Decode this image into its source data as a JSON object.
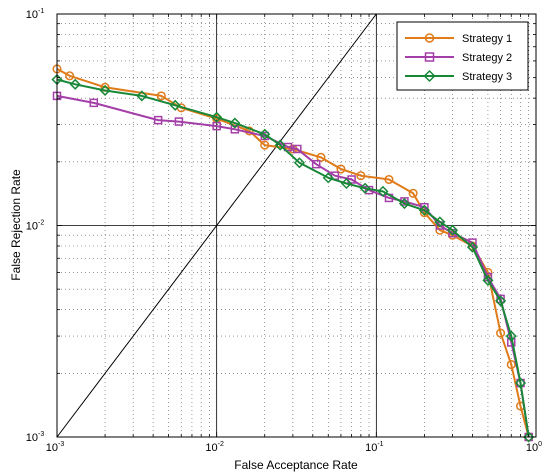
{
  "chart_data": {
    "type": "line",
    "xlabel": "False Acceptance Rate",
    "ylabel": "False Rejection Rate",
    "x_scale": "log",
    "y_scale": "log",
    "xlim": [
      0.001,
      1
    ],
    "ylim": [
      0.001,
      0.1
    ],
    "x_ticks": [
      {
        "value": 0.001,
        "base": "10",
        "exp": "-3"
      },
      {
        "value": 0.01,
        "base": "10",
        "exp": "-2"
      },
      {
        "value": 0.1,
        "base": "10",
        "exp": "-1"
      },
      {
        "value": 1,
        "base": "10",
        "exp": "0"
      }
    ],
    "y_ticks": [
      {
        "value": 0.001,
        "base": "10",
        "exp": "-3"
      },
      {
        "value": 0.01,
        "base": "10",
        "exp": "-2"
      },
      {
        "value": 0.1,
        "base": "10",
        "exp": "-1"
      }
    ],
    "grid": true,
    "legend_position": "top-right",
    "reference_line": {
      "x": [
        0.001,
        0.1
      ],
      "y": [
        0.001,
        0.1
      ],
      "color": "#000000"
    },
    "series": [
      {
        "name": "Strategy 1",
        "color": "#e07b1a",
        "marker": "circle",
        "x": [
          0.001,
          0.0012,
          0.002,
          0.0045,
          0.006,
          0.01,
          0.016,
          0.02,
          0.03,
          0.045,
          0.06,
          0.08,
          0.12,
          0.17,
          0.2,
          0.25,
          0.3,
          0.4,
          0.5,
          0.6,
          0.7,
          0.8,
          0.9
        ],
        "y": [
          0.055,
          0.051,
          0.045,
          0.041,
          0.036,
          0.032,
          0.028,
          0.024,
          0.023,
          0.021,
          0.0185,
          0.0172,
          0.0165,
          0.0142,
          0.0115,
          0.0095,
          0.009,
          0.008,
          0.006,
          0.0031,
          0.0022,
          0.0014,
          0.001
        ]
      },
      {
        "name": "Strategy 2",
        "color": "#a43ea8",
        "marker": "square",
        "x": [
          0.001,
          0.0017,
          0.0043,
          0.0058,
          0.01,
          0.013,
          0.02,
          0.028,
          0.032,
          0.042,
          0.055,
          0.07,
          0.09,
          0.12,
          0.15,
          0.2,
          0.25,
          0.3,
          0.4,
          0.5,
          0.6,
          0.7,
          0.8,
          0.9
        ],
        "y": [
          0.041,
          0.038,
          0.0315,
          0.031,
          0.0295,
          0.0285,
          0.0265,
          0.0235,
          0.023,
          0.0195,
          0.0172,
          0.0165,
          0.0147,
          0.0135,
          0.013,
          0.0122,
          0.01,
          0.0092,
          0.0083,
          0.0057,
          0.0045,
          0.0028,
          0.0018,
          0.001
        ]
      },
      {
        "name": "Strategy 3",
        "color": "#188838",
        "marker": "diamond",
        "x": [
          0.001,
          0.0013,
          0.002,
          0.0034,
          0.0055,
          0.01,
          0.013,
          0.02,
          0.025,
          0.033,
          0.05,
          0.065,
          0.085,
          0.11,
          0.15,
          0.2,
          0.25,
          0.3,
          0.4,
          0.5,
          0.6,
          0.7,
          0.8,
          0.9
        ],
        "y": [
          0.049,
          0.0465,
          0.0435,
          0.041,
          0.037,
          0.0325,
          0.0305,
          0.027,
          0.024,
          0.0198,
          0.0168,
          0.0158,
          0.015,
          0.0145,
          0.0127,
          0.0118,
          0.0104,
          0.0095,
          0.0079,
          0.0055,
          0.0044,
          0.003,
          0.0018,
          0.001
        ]
      }
    ]
  }
}
